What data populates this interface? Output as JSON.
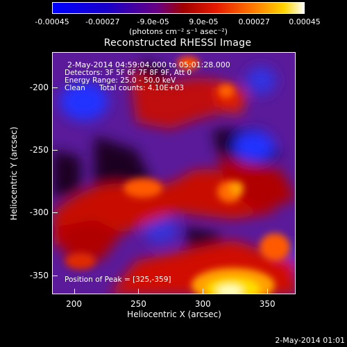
{
  "colorbar": {
    "ticks": [
      "-0.00045",
      "-0.00027",
      "-9.0e-05",
      "9.0e-05",
      "0.00027",
      "0.00045"
    ],
    "ticks_fraction": [
      0.0,
      0.2,
      0.4,
      0.6,
      0.8,
      1.0
    ],
    "unit_label": "(photons cm⁻² s⁻¹ asec⁻²)",
    "colors": [
      "#0000ff",
      "#1a00c8",
      "#6a0080",
      "#a00000",
      "#e61a00",
      "#ff7a00",
      "#ffd400",
      "#ffffff"
    ]
  },
  "chart_data": {
    "type": "heatmap",
    "title": "Reconstructed RHESSI Image",
    "xlabel": "Heliocentric X (arcsec)",
    "ylabel": "Heliocentric Y (arcsec)",
    "xlim": [
      183,
      372
    ],
    "ylim": [
      -365,
      -172
    ],
    "x_ticks": [
      200,
      250,
      300,
      350
    ],
    "y_ticks": [
      -200,
      -250,
      -300,
      -350
    ],
    "value_range": [
      -0.00045,
      0.00045
    ],
    "annotations": {
      "time_range": "2-May-2014 04:59:04.000 to 05:01:28.000",
      "detectors": "Detectors: 3F 5F 6F 7F 8F 9F, Att 0",
      "energy": "Energy Range: 25.0 - 50.0 keV",
      "method": "Clean",
      "total_counts": "Total counts: 4.10E+03",
      "peak": "Position of Peak = [325,-359]"
    },
    "peak": {
      "x": 325,
      "y": -359
    }
  },
  "footer": {
    "timestamp": "2-May-2014 01:01"
  }
}
